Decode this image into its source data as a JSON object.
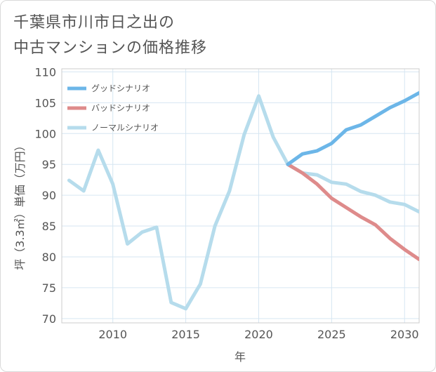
{
  "page": {
    "title_line1": "千葉県市川市日之出の",
    "title_line2": "中古マンションの価格推移"
  },
  "chart_data": {
    "type": "line",
    "title": "千葉県市川市日之出の中古マンションの価格推移",
    "xlabel": "年",
    "ylabel": "坪（3.3㎡）単価（万円）",
    "xlim": [
      2006.5,
      2031
    ],
    "ylim": [
      69.3,
      110.5
    ],
    "x_ticks": [
      2010,
      2015,
      2020,
      2025,
      2030
    ],
    "y_ticks": [
      70,
      75,
      80,
      85,
      90,
      95,
      100,
      105,
      110
    ],
    "grid": true,
    "legend_position": "top-left",
    "series": [
      {
        "name": "グッドシナリオ",
        "color": "#6cb6e8",
        "points": [
          [
            2022,
            95.0
          ],
          [
            2023,
            96.7
          ],
          [
            2024,
            97.2
          ],
          [
            2025,
            98.4
          ],
          [
            2026,
            100.6
          ],
          [
            2027,
            101.4
          ],
          [
            2028,
            102.8
          ],
          [
            2029,
            104.2
          ],
          [
            2030,
            105.3
          ],
          [
            2031,
            106.6
          ]
        ]
      },
      {
        "name": "バッドシナリオ",
        "color": "#de8b8b",
        "points": [
          [
            2022,
            95.0
          ],
          [
            2023,
            93.6
          ],
          [
            2024,
            91.8
          ],
          [
            2025,
            89.5
          ],
          [
            2026,
            88.0
          ],
          [
            2027,
            86.5
          ],
          [
            2028,
            85.2
          ],
          [
            2029,
            83.0
          ],
          [
            2030,
            81.2
          ],
          [
            2031,
            79.6
          ]
        ]
      },
      {
        "name": "ノーマルシナリオ",
        "color": "#b6dcec",
        "points": [
          [
            2007,
            92.4
          ],
          [
            2008,
            90.7
          ],
          [
            2009,
            97.3
          ],
          [
            2010,
            91.8
          ],
          [
            2011,
            82.1
          ],
          [
            2012,
            84.0
          ],
          [
            2013,
            84.8
          ],
          [
            2014,
            72.6
          ],
          [
            2015,
            71.6
          ],
          [
            2016,
            75.6
          ],
          [
            2017,
            85.0
          ],
          [
            2018,
            90.7
          ],
          [
            2019,
            99.8
          ],
          [
            2020,
            106.1
          ],
          [
            2021,
            99.4
          ],
          [
            2022,
            95.0
          ],
          [
            2023,
            93.6
          ],
          [
            2024,
            93.3
          ],
          [
            2025,
            92.1
          ],
          [
            2026,
            91.8
          ],
          [
            2027,
            90.6
          ],
          [
            2028,
            90.0
          ],
          [
            2029,
            88.9
          ],
          [
            2030,
            88.5
          ],
          [
            2031,
            87.3
          ]
        ]
      }
    ]
  }
}
